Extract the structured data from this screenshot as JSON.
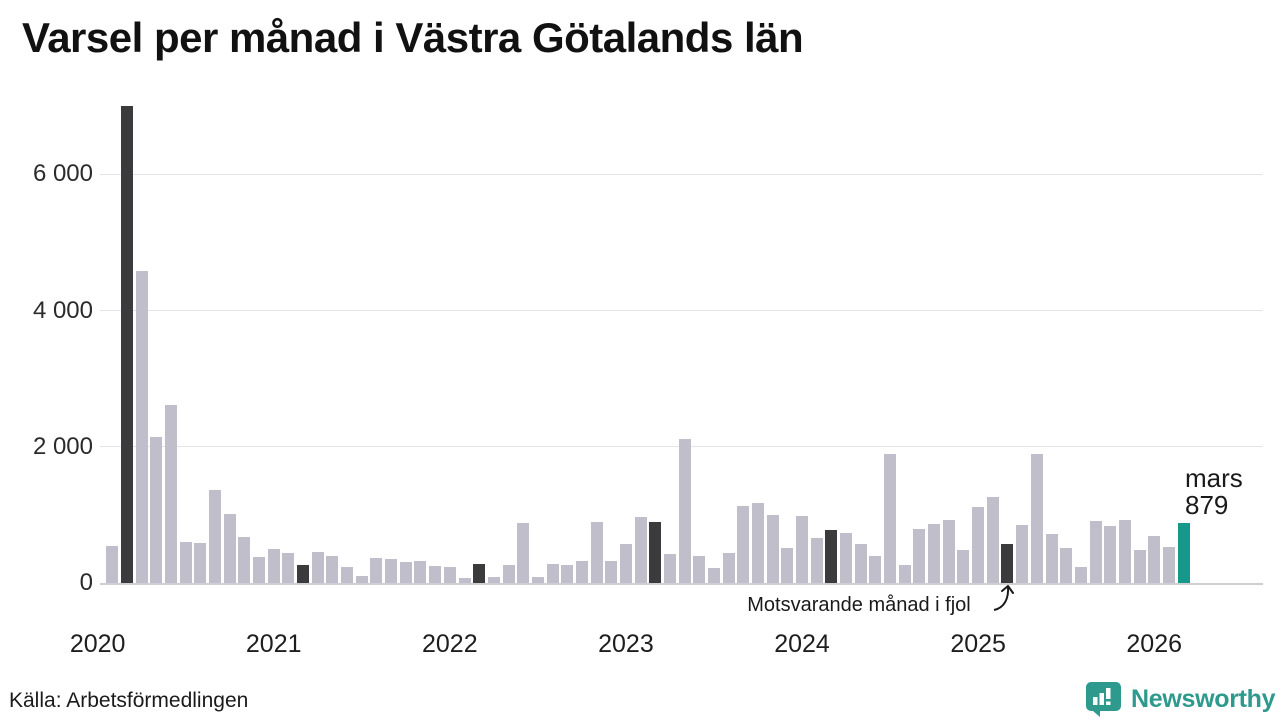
{
  "title": "Varsel per månad i Västra Götalands län",
  "source": "Källa: Arbetsförmedlingen",
  "annotation": "Motsvarande månad i fjol",
  "current_label": {
    "month": "mars",
    "value": "879"
  },
  "logo": {
    "text": "Newsworthy"
  },
  "colors": {
    "bar_normal": "#c1becb",
    "bar_march_dark": "#3b3a3c",
    "bar_current_teal": "#16988a",
    "brand_teal": "#2d9a8d",
    "text_dark": "#1a1a1a"
  },
  "chart_data": {
    "type": "bar",
    "title": "Varsel per månad i Västra Götalands län",
    "xlabel": "",
    "ylabel": "",
    "ylim": [
      0,
      7050
    ],
    "grid": true,
    "yticks": [
      {
        "value": 0,
        "label": "0"
      },
      {
        "value": 2000,
        "label": "2 000"
      },
      {
        "value": 4000,
        "label": "4 000"
      },
      {
        "value": 6000,
        "label": "6 000"
      }
    ],
    "year_ticks": [
      "2020",
      "2021",
      "2022",
      "2023",
      "2024",
      "2025",
      "2026"
    ],
    "highlight_note": "all March bars dark; latest month (mars 2026) teal, value 879",
    "months": [
      {
        "month": "2020-02",
        "value": 550,
        "color": "normal"
      },
      {
        "month": "2020-03",
        "value": 7000,
        "color": "dark"
      },
      {
        "month": "2020-04",
        "value": 4575,
        "color": "normal"
      },
      {
        "month": "2020-05",
        "value": 2150,
        "color": "normal"
      },
      {
        "month": "2020-06",
        "value": 2615,
        "color": "normal"
      },
      {
        "month": "2020-07",
        "value": 600,
        "color": "normal"
      },
      {
        "month": "2020-08",
        "value": 590,
        "color": "normal"
      },
      {
        "month": "2020-09",
        "value": 1370,
        "color": "normal"
      },
      {
        "month": "2020-10",
        "value": 1010,
        "color": "normal"
      },
      {
        "month": "2020-11",
        "value": 680,
        "color": "normal"
      },
      {
        "month": "2020-12",
        "value": 380,
        "color": "normal"
      },
      {
        "month": "2021-01",
        "value": 500,
        "color": "normal"
      },
      {
        "month": "2021-02",
        "value": 440,
        "color": "normal"
      },
      {
        "month": "2021-03",
        "value": 270,
        "color": "dark"
      },
      {
        "month": "2021-04",
        "value": 460,
        "color": "normal"
      },
      {
        "month": "2021-05",
        "value": 390,
        "color": "normal"
      },
      {
        "month": "2021-06",
        "value": 230,
        "color": "normal"
      },
      {
        "month": "2021-07",
        "value": 100,
        "color": "normal"
      },
      {
        "month": "2021-08",
        "value": 370,
        "color": "normal"
      },
      {
        "month": "2021-09",
        "value": 350,
        "color": "normal"
      },
      {
        "month": "2021-10",
        "value": 315,
        "color": "normal"
      },
      {
        "month": "2021-11",
        "value": 325,
        "color": "normal"
      },
      {
        "month": "2021-12",
        "value": 250,
        "color": "normal"
      },
      {
        "month": "2022-01",
        "value": 240,
        "color": "normal"
      },
      {
        "month": "2022-02",
        "value": 70,
        "color": "normal"
      },
      {
        "month": "2022-03",
        "value": 275,
        "color": "dark"
      },
      {
        "month": "2022-04",
        "value": 90,
        "color": "normal"
      },
      {
        "month": "2022-05",
        "value": 260,
        "color": "normal"
      },
      {
        "month": "2022-06",
        "value": 875,
        "color": "normal"
      },
      {
        "month": "2022-07",
        "value": 90,
        "color": "normal"
      },
      {
        "month": "2022-08",
        "value": 275,
        "color": "normal"
      },
      {
        "month": "2022-09",
        "value": 265,
        "color": "normal"
      },
      {
        "month": "2022-10",
        "value": 330,
        "color": "normal"
      },
      {
        "month": "2022-11",
        "value": 900,
        "color": "normal"
      },
      {
        "month": "2022-12",
        "value": 330,
        "color": "normal"
      },
      {
        "month": "2023-01",
        "value": 580,
        "color": "normal"
      },
      {
        "month": "2023-02",
        "value": 970,
        "color": "normal"
      },
      {
        "month": "2023-03",
        "value": 900,
        "color": "dark"
      },
      {
        "month": "2023-04",
        "value": 420,
        "color": "normal"
      },
      {
        "month": "2023-05",
        "value": 2110,
        "color": "normal"
      },
      {
        "month": "2023-06",
        "value": 400,
        "color": "normal"
      },
      {
        "month": "2023-07",
        "value": 220,
        "color": "normal"
      },
      {
        "month": "2023-08",
        "value": 440,
        "color": "normal"
      },
      {
        "month": "2023-09",
        "value": 1130,
        "color": "normal"
      },
      {
        "month": "2023-10",
        "value": 1170,
        "color": "normal"
      },
      {
        "month": "2023-11",
        "value": 1000,
        "color": "normal"
      },
      {
        "month": "2023-12",
        "value": 510,
        "color": "normal"
      },
      {
        "month": "2024-01",
        "value": 980,
        "color": "normal"
      },
      {
        "month": "2024-02",
        "value": 665,
        "color": "normal"
      },
      {
        "month": "2024-03",
        "value": 780,
        "color": "dark"
      },
      {
        "month": "2024-04",
        "value": 730,
        "color": "normal"
      },
      {
        "month": "2024-05",
        "value": 580,
        "color": "normal"
      },
      {
        "month": "2024-06",
        "value": 400,
        "color": "normal"
      },
      {
        "month": "2024-07",
        "value": 1900,
        "color": "normal"
      },
      {
        "month": "2024-08",
        "value": 270,
        "color": "normal"
      },
      {
        "month": "2024-09",
        "value": 800,
        "color": "normal"
      },
      {
        "month": "2024-10",
        "value": 865,
        "color": "normal"
      },
      {
        "month": "2024-11",
        "value": 930,
        "color": "normal"
      },
      {
        "month": "2024-12",
        "value": 485,
        "color": "normal"
      },
      {
        "month": "2025-01",
        "value": 1110,
        "color": "normal"
      },
      {
        "month": "2025-02",
        "value": 1270,
        "color": "normal"
      },
      {
        "month": "2025-03",
        "value": 570,
        "color": "dark"
      },
      {
        "month": "2025-04",
        "value": 850,
        "color": "normal"
      },
      {
        "month": "2025-05",
        "value": 1890,
        "color": "normal"
      },
      {
        "month": "2025-06",
        "value": 720,
        "color": "normal"
      },
      {
        "month": "2025-07",
        "value": 510,
        "color": "normal"
      },
      {
        "month": "2025-08",
        "value": 235,
        "color": "normal"
      },
      {
        "month": "2025-09",
        "value": 915,
        "color": "normal"
      },
      {
        "month": "2025-10",
        "value": 830,
        "color": "normal"
      },
      {
        "month": "2025-11",
        "value": 920,
        "color": "normal"
      },
      {
        "month": "2025-12",
        "value": 490,
        "color": "normal"
      },
      {
        "month": "2026-01",
        "value": 695,
        "color": "normal"
      },
      {
        "month": "2026-02",
        "value": 525,
        "color": "normal"
      },
      {
        "month": "2026-03",
        "value": 879,
        "color": "current"
      }
    ]
  }
}
